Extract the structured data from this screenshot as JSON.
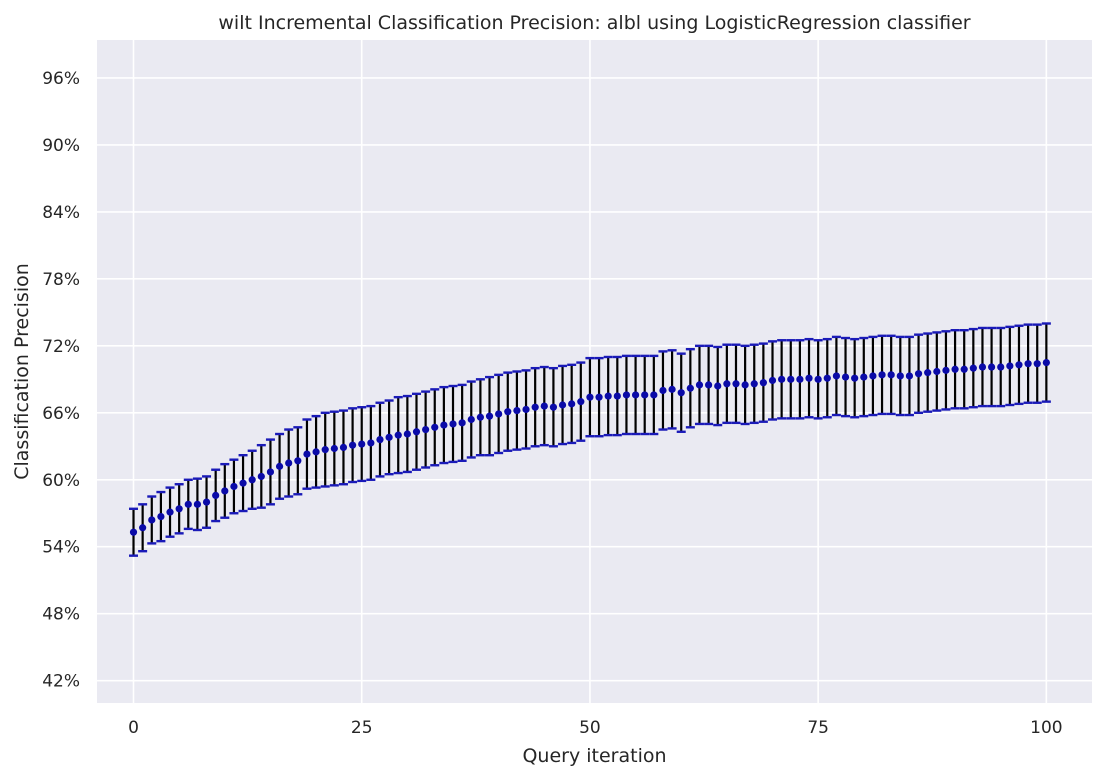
{
  "chart_data": {
    "type": "scatter",
    "title": "wilt Incremental Classification Precision: albl using LogisticRegression classifier",
    "xlabel": "Query iteration",
    "ylabel": "Classification Precision",
    "xlim": [
      -4,
      105
    ],
    "ylim": [
      0.4,
      0.994
    ],
    "x_ticks": [
      0,
      25,
      50,
      75,
      100
    ],
    "x_tick_labels": [
      "0",
      "25",
      "50",
      "75",
      "100"
    ],
    "y_ticks": [
      0.42,
      0.48,
      0.54,
      0.6,
      0.66,
      0.72,
      0.78,
      0.84,
      0.9,
      0.96
    ],
    "y_tick_labels": [
      "42%",
      "48%",
      "54%",
      "60%",
      "66%",
      "72%",
      "78%",
      "84%",
      "90%",
      "96%"
    ],
    "grid": true,
    "series": [
      {
        "x": [
          0,
          1,
          2,
          3,
          4,
          5,
          6,
          7,
          8,
          9,
          10,
          11,
          12,
          13,
          14,
          15,
          16,
          17,
          18,
          19,
          20,
          21,
          22,
          23,
          24,
          25,
          26,
          27,
          28,
          29,
          30,
          31,
          32,
          33,
          34,
          35,
          36,
          37,
          38,
          39,
          40,
          41,
          42,
          43,
          44,
          45,
          46,
          47,
          48,
          49,
          50,
          51,
          52,
          53,
          54,
          55,
          56,
          57,
          58,
          59,
          60,
          61,
          62,
          63,
          64,
          65,
          66,
          67,
          68,
          69,
          70,
          71,
          72,
          73,
          74,
          75,
          76,
          77,
          78,
          79,
          80,
          81,
          82,
          83,
          84,
          85,
          86,
          87,
          88,
          89,
          90,
          91,
          92,
          93,
          94,
          95,
          96,
          97,
          98,
          99,
          100
        ],
        "y": [
          0.553,
          0.557,
          0.564,
          0.567,
          0.571,
          0.574,
          0.578,
          0.578,
          0.58,
          0.586,
          0.59,
          0.594,
          0.597,
          0.6,
          0.603,
          0.607,
          0.612,
          0.615,
          0.617,
          0.623,
          0.625,
          0.627,
          0.628,
          0.629,
          0.631,
          0.632,
          0.633,
          0.636,
          0.638,
          0.64,
          0.641,
          0.643,
          0.645,
          0.647,
          0.649,
          0.65,
          0.651,
          0.654,
          0.656,
          0.657,
          0.659,
          0.661,
          0.662,
          0.663,
          0.665,
          0.666,
          0.665,
          0.667,
          0.668,
          0.67,
          0.674,
          0.674,
          0.675,
          0.675,
          0.676,
          0.676,
          0.676,
          0.676,
          0.68,
          0.681,
          0.678,
          0.682,
          0.685,
          0.685,
          0.684,
          0.686,
          0.686,
          0.685,
          0.686,
          0.687,
          0.689,
          0.69,
          0.69,
          0.69,
          0.691,
          0.69,
          0.691,
          0.693,
          0.692,
          0.691,
          0.692,
          0.693,
          0.694,
          0.694,
          0.693,
          0.693,
          0.695,
          0.696,
          0.697,
          0.698,
          0.699,
          0.699,
          0.7,
          0.701,
          0.701,
          0.701,
          0.702,
          0.703,
          0.704,
          0.704,
          0.705
        ],
        "err": [
          0.021,
          0.021,
          0.021,
          0.022,
          0.022,
          0.022,
          0.022,
          0.023,
          0.023,
          0.023,
          0.024,
          0.024,
          0.025,
          0.026,
          0.028,
          0.029,
          0.029,
          0.03,
          0.03,
          0.031,
          0.032,
          0.033,
          0.033,
          0.033,
          0.033,
          0.033,
          0.033,
          0.033,
          0.033,
          0.034,
          0.034,
          0.034,
          0.034,
          0.034,
          0.034,
          0.034,
          0.034,
          0.034,
          0.034,
          0.035,
          0.035,
          0.035,
          0.035,
          0.035,
          0.035,
          0.035,
          0.035,
          0.035,
          0.035,
          0.035,
          0.035,
          0.035,
          0.035,
          0.035,
          0.035,
          0.035,
          0.035,
          0.035,
          0.035,
          0.035,
          0.035,
          0.035,
          0.035,
          0.035,
          0.035,
          0.035,
          0.035,
          0.035,
          0.035,
          0.035,
          0.035,
          0.035,
          0.035,
          0.035,
          0.035,
          0.035,
          0.035,
          0.035,
          0.035,
          0.035,
          0.035,
          0.035,
          0.035,
          0.035,
          0.035,
          0.035,
          0.035,
          0.035,
          0.035,
          0.035,
          0.035,
          0.035,
          0.035,
          0.035,
          0.035,
          0.035,
          0.035,
          0.035,
          0.035,
          0.035,
          0.035
        ]
      }
    ]
  },
  "colors": {
    "background": "#ffffff",
    "plot_background": "#eaeaf2",
    "grid": "#ffffff",
    "point": "#0a0aa8",
    "error_bar": "#000000",
    "cap": "#1a1ab8",
    "text": "#262626"
  }
}
